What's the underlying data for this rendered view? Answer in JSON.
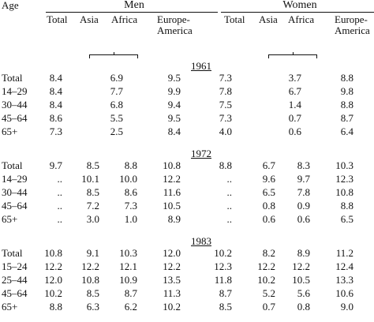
{
  "headers": {
    "age": "Age",
    "men": "Men",
    "women": "Women",
    "total": "Total",
    "asia": "Asia",
    "africa": "Africa",
    "europe_line1": "Europe-",
    "europe_line2": "America"
  },
  "sections": [
    {
      "year": "1961",
      "rows": [
        {
          "age": "Total",
          "m_total": "8.4",
          "m_asia": "6.9",
          "m_africa": "",
          "m_eur": "9.5",
          "w_total": "7.3",
          "w_asia": "3.7",
          "w_africa": "",
          "w_eur": "8.8"
        },
        {
          "age": "14–29",
          "m_total": "8.4",
          "m_asia": "7.7",
          "m_africa": "",
          "m_eur": "9.9",
          "w_total": "7.8",
          "w_asia": "6.7",
          "w_africa": "",
          "w_eur": "9.8"
        },
        {
          "age": "30–44",
          "m_total": "8.4",
          "m_asia": "6.8",
          "m_africa": "",
          "m_eur": "9.4",
          "w_total": "7.5",
          "w_asia": "1.4",
          "w_africa": "",
          "w_eur": "8.8"
        },
        {
          "age": "45–64",
          "m_total": "8.6",
          "m_asia": "5.5",
          "m_africa": "",
          "m_eur": "9.5",
          "w_total": "7.3",
          "w_asia": "0.7",
          "w_africa": "",
          "w_eur": "8.7"
        },
        {
          "age": "65+",
          "m_total": "7.3",
          "m_asia": "2.5",
          "m_africa": "",
          "m_eur": "8.4",
          "w_total": "4.0",
          "w_asia": "0.6",
          "w_africa": "",
          "w_eur": "6.4"
        }
      ]
    },
    {
      "year": "1972",
      "rows": [
        {
          "age": "Total",
          "m_total": "9.7",
          "m_asia": "8.5",
          "m_africa": "8.8",
          "m_eur": "10.8",
          "w_total": "8.8",
          "w_asia": "6.7",
          "w_africa": "8.3",
          "w_eur": "10.3"
        },
        {
          "age": "14–29",
          "m_total": "..",
          "m_asia": "10.1",
          "m_africa": "10.0",
          "m_eur": "12.2",
          "w_total": "..",
          "w_asia": "9.6",
          "w_africa": "9.7",
          "w_eur": "12.3"
        },
        {
          "age": "30–44",
          "m_total": "..",
          "m_asia": "8.5",
          "m_africa": "8.6",
          "m_eur": "11.6",
          "w_total": "..",
          "w_asia": "6.5",
          "w_africa": "7.8",
          "w_eur": "10.8"
        },
        {
          "age": "45–64",
          "m_total": "..",
          "m_asia": "7.2",
          "m_africa": "7.3",
          "m_eur": "10.5",
          "w_total": "..",
          "w_asia": "0.8",
          "w_africa": "0.9",
          "w_eur": "8.8"
        },
        {
          "age": "65+",
          "m_total": "..",
          "m_asia": "3.0",
          "m_africa": "1.0",
          "m_eur": "8.9",
          "w_total": "..",
          "w_asia": "0.6",
          "w_africa": "0.6",
          "w_eur": "6.5"
        }
      ]
    },
    {
      "year": "1983",
      "rows": [
        {
          "age": "Total",
          "m_total": "10.8",
          "m_asia": "9.1",
          "m_africa": "10.3",
          "m_eur": "12.0",
          "w_total": "10.2",
          "w_asia": "8.2",
          "w_africa": "8.9",
          "w_eur": "11.2"
        },
        {
          "age": "15–24",
          "m_total": "12.2",
          "m_asia": "12.2",
          "m_africa": "12.1",
          "m_eur": "12.2",
          "w_total": "12.3",
          "w_asia": "12.2",
          "w_africa": "12.2",
          "w_eur": "12.4"
        },
        {
          "age": "25–44",
          "m_total": "12.0",
          "m_asia": "10.8",
          "m_africa": "10.9",
          "m_eur": "13.5",
          "w_total": "11.8",
          "w_asia": "10.2",
          "w_africa": "10.5",
          "w_eur": "13.3"
        },
        {
          "age": "45–64",
          "m_total": "10.2",
          "m_asia": "8.5",
          "m_africa": "8.7",
          "m_eur": "11.3",
          "w_total": "8.7",
          "w_asia": "5.2",
          "w_africa": "5.6",
          "w_eur": "10.6"
        },
        {
          "age": "65+",
          "m_total": "8.8",
          "m_asia": "6.3",
          "m_africa": "6.2",
          "m_eur": "10.2",
          "w_total": "8.5",
          "w_asia": "0.7",
          "w_africa": "0.8",
          "w_eur": "9.0"
        }
      ]
    }
  ]
}
